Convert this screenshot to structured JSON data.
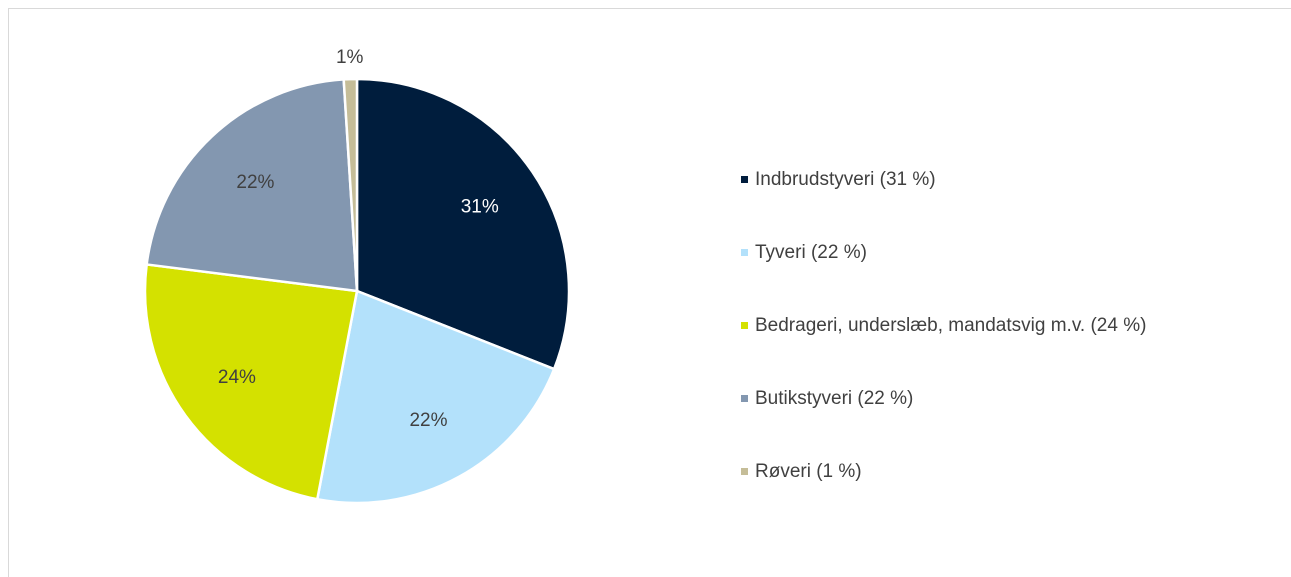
{
  "chart_data": {
    "type": "pie",
    "categories": [
      "Indbrudstyveri (31 %)",
      "Tyveri (22 %)",
      "Bedrageri, underslæb, mandatsvig m.v. (24 %)",
      "Butikstyveri (22 %)",
      "Røveri (1 %)"
    ],
    "values": [
      31,
      22,
      24,
      22,
      1
    ],
    "value_labels": [
      "31%",
      "22%",
      "24%",
      "22%",
      "1%"
    ],
    "colors": [
      "#001d3d",
      "#b3e1fb",
      "#d4e100",
      "#8397b0",
      "#c5bd98"
    ],
    "legend": "right"
  }
}
